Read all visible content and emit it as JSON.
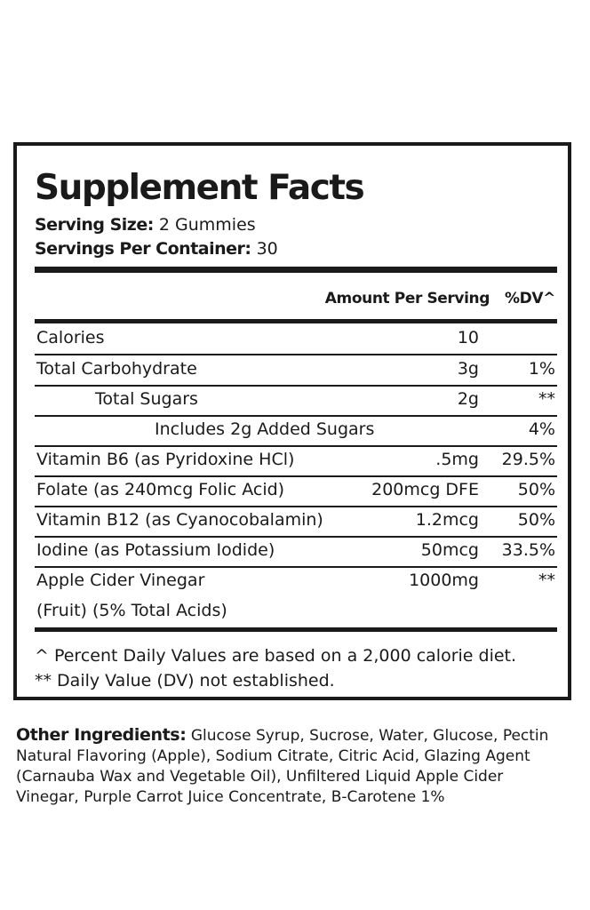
{
  "title": "Supplement Facts",
  "serving_size": {
    "label": "Serving Size:",
    "value": "2 Gummies"
  },
  "servings_per_container": {
    "label": "Servings Per Container:",
    "value": "30"
  },
  "columns": {
    "amount": "Amount Per Serving",
    "dv": "%DV^"
  },
  "rows": [
    {
      "name": "Calories",
      "amount": "10",
      "dv": ""
    },
    {
      "name": "Total Carbohydrate",
      "amount": "3g",
      "dv": "1%"
    },
    {
      "name": "Total Sugars",
      "amount": "2g",
      "dv": "**"
    },
    {
      "name": "Includes 2g Added Sugars",
      "amount": "",
      "dv": "4%"
    },
    {
      "name": "Vitamin B6 (as Pyridoxine HCl)",
      "amount": ".5mg",
      "dv": "29.5%"
    },
    {
      "name": "Folate (as 240mcg Folic Acid)",
      "amount": "200mcg DFE",
      "dv": "50%"
    },
    {
      "name": "Vitamin B12 (as Cyanocobalamin)",
      "amount": "1.2mcg",
      "dv": "50%"
    },
    {
      "name": "Iodine (as Potassium Iodide)",
      "amount": "50mcg",
      "dv": "33.5%"
    },
    {
      "name": "Apple Cider Vinegar",
      "name2": "(Fruit) (5% Total Acids)",
      "amount": "1000mg",
      "dv": "**"
    }
  ],
  "footnotes": [
    "^ Percent Daily Values are based on a 2,000 calorie diet.",
    "** Daily Value (DV) not established."
  ],
  "other_ingredients": {
    "label": "Other Ingredients:",
    "line1": "Glucose Syrup, Sucrose, Water, Glucose, Pectin",
    "line2": "Natural Flavoring (Apple), Sodium Citrate, Citric Acid, Glazing Agent",
    "line3": "(Carnauba Wax and Vegetable Oil), Unfiltered Liquid Apple Cider",
    "line4": "Vinegar, Purple Carrot Juice Concentrate, B-Carotene 1%"
  }
}
